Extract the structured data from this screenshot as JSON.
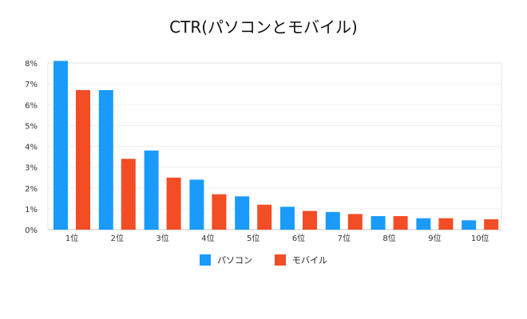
{
  "chart_data": {
    "type": "bar",
    "title": "CTR(パソコンとモバイル)",
    "categories": [
      "1位",
      "2位",
      "3位",
      "4位",
      "5位",
      "6位",
      "7位",
      "8位",
      "9位",
      "10位"
    ],
    "series": [
      {
        "name": "パソコン",
        "color": "#1a9bfc",
        "values": [
          8.1,
          6.7,
          3.8,
          2.4,
          1.6,
          1.1,
          0.85,
          0.65,
          0.55,
          0.45
        ]
      },
      {
        "name": "モバイル",
        "color": "#f34d26",
        "values": [
          6.7,
          3.4,
          2.5,
          1.7,
          1.2,
          0.9,
          0.75,
          0.65,
          0.55,
          0.5
        ]
      }
    ],
    "ylim": [
      0,
      8
    ],
    "yticks": [
      "0%",
      "1%",
      "2%",
      "3%",
      "4%",
      "5%",
      "6%",
      "7%",
      "8%"
    ],
    "grid": true,
    "legend_position": "bottom-center"
  }
}
